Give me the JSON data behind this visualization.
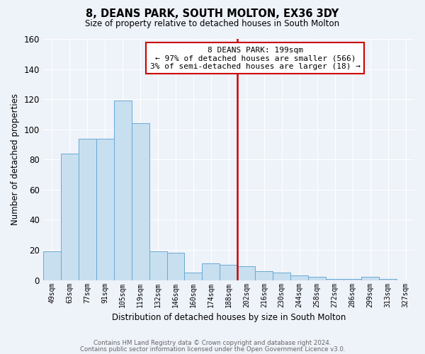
{
  "title": "8, DEANS PARK, SOUTH MOLTON, EX36 3DY",
  "subtitle": "Size of property relative to detached houses in South Molton",
  "xlabel": "Distribution of detached houses by size in South Molton",
  "ylabel": "Number of detached properties",
  "bar_color": "#c8dff0",
  "bar_edge_color": "#6aaad4",
  "background_color": "#eef2f9",
  "grid_color": "#ffffff",
  "bin_labels": [
    "49sqm",
    "63sqm",
    "77sqm",
    "91sqm",
    "105sqm",
    "119sqm",
    "132sqm",
    "146sqm",
    "160sqm",
    "174sqm",
    "188sqm",
    "202sqm",
    "216sqm",
    "230sqm",
    "244sqm",
    "258sqm",
    "272sqm",
    "286sqm",
    "299sqm",
    "313sqm",
    "327sqm"
  ],
  "bar_heights": [
    19,
    84,
    94,
    94,
    119,
    104,
    19,
    18,
    5,
    11,
    10,
    9,
    6,
    5,
    3,
    2,
    1,
    1,
    2,
    1,
    0
  ],
  "vline_index": 11,
  "vline_color": "#cc0000",
  "annotation_title": "8 DEANS PARK: 199sqm",
  "annotation_line1": "← 97% of detached houses are smaller (566)",
  "annotation_line2": "3% of semi-detached houses are larger (18) →",
  "ylim": [
    0,
    160
  ],
  "yticks": [
    0,
    20,
    40,
    60,
    80,
    100,
    120,
    140,
    160
  ],
  "footnote1": "Contains HM Land Registry data © Crown copyright and database right 2024.",
  "footnote2": "Contains public sector information licensed under the Open Government Licence v3.0."
}
